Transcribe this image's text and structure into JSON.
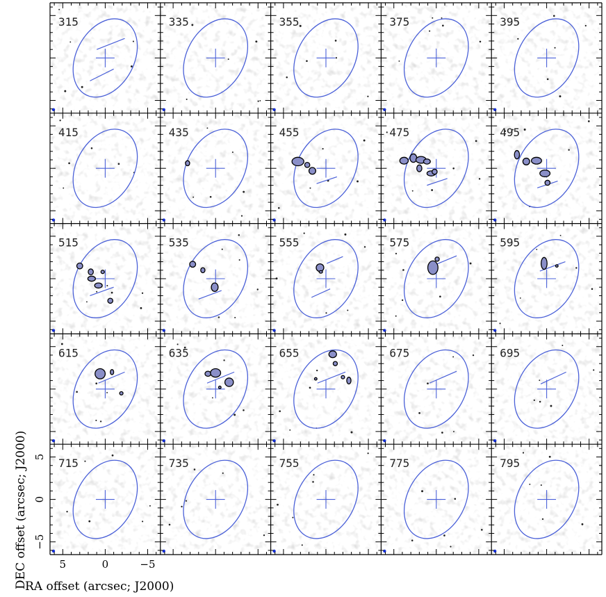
{
  "chart_data": {
    "type": "channel-map-grid",
    "panel_labels": [
      "315",
      "335",
      "355",
      "375",
      "395",
      "415",
      "435",
      "455",
      "475",
      "495",
      "515",
      "535",
      "555",
      "575",
      "595",
      "615",
      "635",
      "655",
      "675",
      "695",
      "715",
      "735",
      "755",
      "775",
      "795"
    ],
    "xlabel": "RA offset (arcsec; J2000)",
    "ylabel": "DEC offset (arcsec; J2000)",
    "xlim": [
      6.5,
      -6.5
    ],
    "ylim": [
      -6.5,
      6.5
    ],
    "x_ticks": [
      5,
      0,
      -5
    ],
    "x_tick_labels": [
      "5",
      "0",
      "−5"
    ],
    "y_ticks": [
      5,
      0,
      -5
    ],
    "y_tick_labels": [
      "5",
      "0",
      "−5"
    ],
    "ellipse": {
      "center": [
        0,
        0
      ],
      "semi_major_arcsec": 4.9,
      "semi_minor_arcsec": 3.4,
      "pa_deg": 28
    },
    "center_cross_arcsec": 1.1,
    "beam_marker": "blue dot, bottom-left",
    "colors": {
      "ellipse": "#4a60d8",
      "cross": "#4a60d8",
      "contour": "#000000",
      "fill": "#8a8fc8",
      "beam": "#1530e0"
    },
    "slit_panels": {
      "315": {
        "lines": [
          [
            [
              1.0,
              1.0
            ],
            [
              -2.3,
              2.3
            ]
          ],
          [
            [
              1.8,
              -2.7
            ],
            [
              -1.0,
              -1.3
            ]
          ]
        ]
      },
      "455": {
        "lines": [
          [
            [
              1.1,
              -1.8
            ],
            [
              -1.3,
              -1.0
            ]
          ]
        ]
      },
      "475": {
        "lines": [
          [
            [
              1.1,
              -2.0
            ],
            [
              -1.3,
              -1.2
            ]
          ]
        ]
      },
      "495": {
        "lines": [
          [
            [
              1.1,
              -2.3
            ],
            [
              -1.3,
              -1.5
            ]
          ]
        ]
      },
      "515": {
        "lines": [
          [
            [
              1.8,
              -2.0
            ],
            [
              -1.0,
              -1.0
            ]
          ]
        ]
      },
      "535": {
        "lines": [
          [
            [
              2.0,
              -2.4
            ],
            [
              -0.7,
              -1.4
            ]
          ]
        ]
      },
      "555": {
        "lines": [
          [
            [
              1.7,
              -2.2
            ],
            [
              -0.5,
              -1.2
            ]
          ],
          [
            [
              -0.1,
              1.8
            ],
            [
              -2.0,
              2.6
            ]
          ]
        ]
      },
      "575": {
        "lines": [
          [
            [
              0.0,
              1.7
            ],
            [
              -2.4,
              2.7
            ]
          ]
        ]
      },
      "595": {
        "lines": [
          [
            [
              0.8,
              0.9
            ],
            [
              -2.2,
              2.0
            ]
          ]
        ]
      },
      "615": {
        "lines": [
          [
            [
              0.8,
              0.7
            ],
            [
              -2.3,
              2.0
            ]
          ]
        ]
      },
      "635": {
        "lines": [
          [
            [
              1.0,
              0.7
            ],
            [
              -2.2,
              2.0
            ]
          ]
        ]
      },
      "655": {
        "lines": [
          [
            [
              1.0,
              0.7
            ],
            [
              -2.3,
              2.0
            ]
          ]
        ]
      },
      "675": {
        "lines": [
          [
            [
              0.8,
              0.7
            ],
            [
              -2.4,
              2.1
            ]
          ]
        ]
      },
      "695": {
        "lines": [
          [
            [
              0.7,
              0.6
            ],
            [
              -2.3,
              2.0
            ]
          ]
        ]
      }
    },
    "emission_blobs": {
      "435": [
        [
          3.3,
          0.6,
          0.25,
          0.3
        ]
      ],
      "455": [
        [
          3.3,
          0.8,
          0.7,
          0.5
        ],
        [
          2.2,
          0.4,
          0.3,
          0.3
        ],
        [
          1.6,
          -0.3,
          0.4,
          0.4
        ]
      ],
      "475": [
        [
          3.8,
          0.9,
          0.5,
          0.4
        ],
        [
          2.7,
          1.2,
          0.4,
          0.5
        ],
        [
          1.8,
          1.0,
          0.6,
          0.4
        ],
        [
          1.1,
          0.8,
          0.4,
          0.3
        ],
        [
          2.0,
          0.0,
          0.3,
          0.4
        ],
        [
          0.6,
          -0.6,
          0.5,
          0.3
        ],
        [
          0.2,
          -0.4,
          0.3,
          0.3
        ]
      ],
      "495": [
        [
          3.5,
          1.6,
          0.3,
          0.5
        ],
        [
          2.4,
          0.8,
          0.4,
          0.4
        ],
        [
          1.2,
          0.9,
          0.6,
          0.4
        ],
        [
          0.2,
          -0.6,
          0.6,
          0.4
        ],
        [
          -0.1,
          -1.7,
          0.3,
          0.3
        ]
      ],
      "515": [
        [
          3.0,
          1.5,
          0.35,
          0.35
        ],
        [
          1.7,
          0.8,
          0.3,
          0.35
        ],
        [
          1.6,
          0.0,
          0.45,
          0.3
        ],
        [
          0.8,
          -0.8,
          0.45,
          0.3
        ],
        [
          0.3,
          0.8,
          0.2,
          0.2
        ],
        [
          -0.6,
          -2.6,
          0.3,
          0.3
        ]
      ],
      "535": [
        [
          2.7,
          1.7,
          0.35,
          0.35
        ],
        [
          1.5,
          1.0,
          0.25,
          0.3
        ],
        [
          0.1,
          -1.0,
          0.4,
          0.5
        ]
      ],
      "555": [
        [
          0.7,
          1.3,
          0.45,
          0.45
        ],
        [
          0.6,
          0.8,
          0.2,
          0.15
        ]
      ],
      "575": [
        [
          0.4,
          1.3,
          0.6,
          0.8
        ],
        [
          -0.1,
          2.3,
          0.25,
          0.25
        ]
      ],
      "595": [
        [
          0.3,
          1.8,
          0.35,
          0.7
        ],
        [
          -1.2,
          1.5,
          0.15,
          0.15
        ]
      ],
      "615": [
        [
          0.6,
          1.8,
          0.6,
          0.6
        ],
        [
          -0.8,
          2.0,
          0.2,
          0.3
        ],
        [
          -1.9,
          -0.5,
          0.2,
          0.2
        ]
      ],
      "635": [
        [
          0.9,
          1.8,
          0.35,
          0.3
        ],
        [
          0.0,
          1.9,
          0.6,
          0.5
        ],
        [
          -1.6,
          0.8,
          0.5,
          0.5
        ],
        [
          -0.5,
          0.2,
          0.15,
          0.15
        ]
      ],
      "655": [
        [
          -0.8,
          4.1,
          0.45,
          0.4
        ],
        [
          -1.1,
          3.0,
          0.25,
          0.25
        ],
        [
          -2.7,
          1.0,
          0.25,
          0.4
        ],
        [
          -2.0,
          1.4,
          0.2,
          0.2
        ],
        [
          1.2,
          1.2,
          0.15,
          0.15
        ]
      ]
    }
  }
}
